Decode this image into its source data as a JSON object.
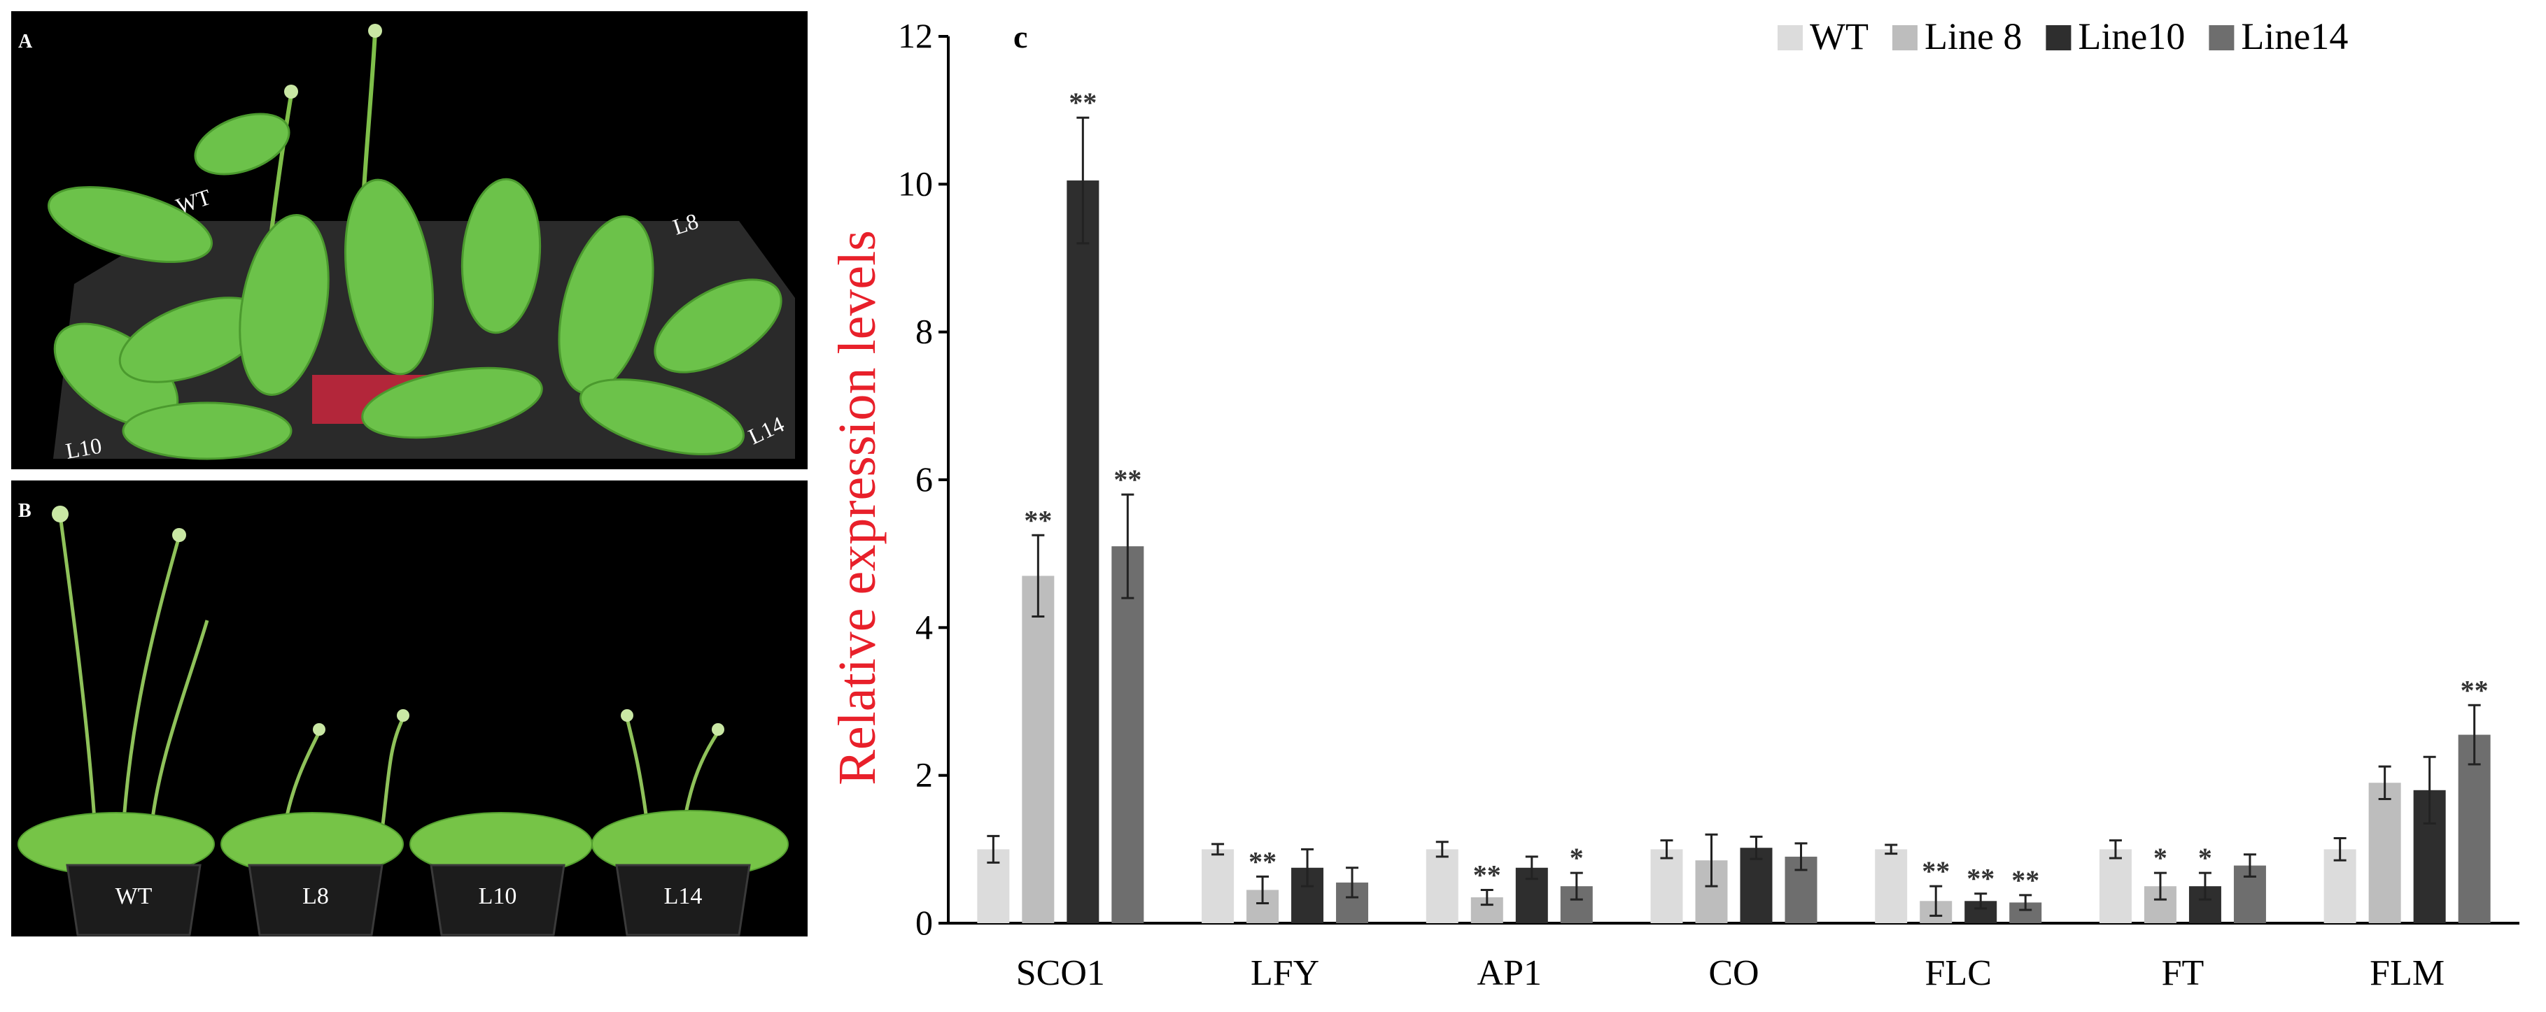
{
  "panel_a": {
    "letter": "A",
    "labels": {
      "wt": "WT",
      "l8": "L8",
      "l10": "L10",
      "l14": "L14"
    }
  },
  "panel_b": {
    "letter": "B",
    "labels": {
      "wt": "WT",
      "l8": "L8",
      "l10": "L10",
      "l14": "L14"
    }
  },
  "chart_data": {
    "type": "bar",
    "panel_letter": "c",
    "title": "",
    "xlabel": "",
    "ylabel": "Relative expression levels",
    "ylabel_color": "#e8202a",
    "ylim": [
      0,
      12
    ],
    "yticks": [
      0,
      2,
      4,
      6,
      8,
      10,
      12
    ],
    "grid": false,
    "legend_position": "top-right",
    "categories": [
      "SCO1",
      "LFY",
      "AP1",
      "CO",
      "FLC",
      "FT",
      "FLM"
    ],
    "series": [
      {
        "name": "WT",
        "color": "#dcdcdc",
        "values": [
          1.0,
          1.0,
          1.0,
          1.0,
          1.0,
          1.0,
          1.0
        ],
        "errors": [
          0.18,
          0.07,
          0.1,
          0.12,
          0.06,
          0.12,
          0.15
        ],
        "significance": [
          "",
          "",
          "",
          "",
          "",
          "",
          ""
        ]
      },
      {
        "name": "Line 8",
        "color": "#bdbdbd",
        "values": [
          4.7,
          0.45,
          0.35,
          0.85,
          0.3,
          0.5,
          1.9
        ],
        "errors": [
          0.55,
          0.18,
          0.1,
          0.35,
          0.2,
          0.18,
          0.22
        ],
        "significance": [
          "**",
          "**",
          "**",
          "",
          "**",
          "*",
          ""
        ]
      },
      {
        "name": "Line10",
        "color": "#2e2e2e",
        "values": [
          10.05,
          0.75,
          0.75,
          1.02,
          0.3,
          0.5,
          1.8
        ],
        "errors": [
          0.85,
          0.25,
          0.15,
          0.15,
          0.1,
          0.18,
          0.45
        ],
        "significance": [
          "**",
          "",
          "",
          "",
          "**",
          "*",
          ""
        ]
      },
      {
        "name": "Line14",
        "color": "#6e6e6e",
        "values": [
          5.1,
          0.55,
          0.5,
          0.9,
          0.28,
          0.78,
          2.55
        ],
        "errors": [
          0.7,
          0.2,
          0.18,
          0.18,
          0.1,
          0.15,
          0.4
        ],
        "significance": [
          "**",
          "",
          "*",
          "",
          "**",
          "",
          "**"
        ]
      }
    ]
  }
}
